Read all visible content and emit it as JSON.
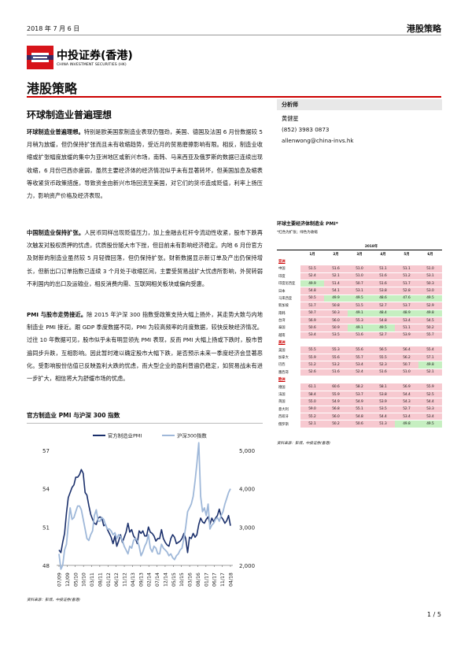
{
  "header": {
    "date": "2018 年 7 月 6 日",
    "report_type": "港股策略"
  },
  "logo": {
    "company_cn": "中投证券(香港)",
    "company_en": "CHINA INVESTMENT SECURITIES (HK)",
    "colors": {
      "red": "#d7141a",
      "navy": "#1c2c6e"
    }
  },
  "section_title": "港股策略",
  "doc_title": "环球制造业普遍理想",
  "paragraphs": [
    {
      "lead": "环球制造业普遍理想。",
      "text": "特别是欧美国家制造业表现仍强劲，美国、德国及法国 6 月份数据较 5 月稍为放缓，但仍保持扩张而且未有收缩趋势，受近月的贸易磨擦影响有限。相反，制造业收缩或扩张幅度放缓的集中为亚洲地区或新兴市场，南韩、马来西亚及俄罗斯的数据已连续出现收缩，6 月份巴西亦疲弱，虽然主要经济体的经济情况似乎未有显著转坏，但美国加息及缩表等收紧货币政策措施，导致资金由新兴市场回流至美国，对它们的货币造成贬值，利率上扬压力，影响资产价格及经济表现。"
    },
    {
      "lead": "中国制造业保持扩张。",
      "text": "人民币同样出现贬值压力，加上金融去杠杆令流动性收紧，股市下跌再次触发对股权质押的忧虑，优质股份随大市下挫，但目前未有影响经济稳定。内地 6 月份官方及财新的制造业虽然较 5 月轻微回落，但仍保持扩张。财新数据显示新订单及产出仍保持增长，但新出口订单指数已连续 3 个月处于收缩区间，主要受贸易战扩大忧虑所影响，外贸转弱不利国内的出口及运输业，相反消费内需、互联网相关板块或偏向受惠。"
    },
    {
      "lead": "PMI 与股市走势接近。",
      "text": "除 2015 年沪深 300 指数受政策支持大幅上扬外，其走势大致与内地制造业 PMI 接近。跟 GDP 季度数据不同，PMI 为较高频率的月度数据，较快反映经济情况。过往 10 年数据可见，股市似乎未有明显领先 PMI 表现，反而 PMI 大幅上扬或下跌时，股市普遍同步升跌，互相影响。因此暂时难以确定股市大幅下跌，是否预示未来一季度经济会显著恶化。受影响股份估值已反映盈利大跌的忧虑，而大型企业的盈利普遍仍稳定，如贸易战未有进一步扩大，相信将大为舒缓市场的忧虑。"
    }
  ],
  "analyst": {
    "heading": "分析师",
    "name": "黄健星",
    "phone": "(852) 3983 0873",
    "email": "allenwong@china-invs.hk"
  },
  "pmi_table": {
    "title": "环球主要经济体制造业 PMI*",
    "subtitle": "*红色为扩张；绿色为收缩",
    "year": "2018年",
    "months": [
      "1月",
      "2月",
      "3月",
      "4月",
      "5月",
      "6月"
    ],
    "groups": [
      {
        "label": "亚洲",
        "rows": [
          {
            "name": "中国",
            "values": [
              "51.5",
              "51.6",
              "51.0",
              "51.1",
              "51.1",
              "51.0"
            ]
          },
          {
            "name": "印度",
            "values": [
              "52.4",
              "52.1",
              "51.0",
              "51.6",
              "51.2",
              "53.1"
            ]
          },
          {
            "name": "印度尼西亚",
            "values": [
              "49.9",
              "51.4",
              "50.7",
              "51.6",
              "51.7",
              "50.3"
            ]
          },
          {
            "name": "日本",
            "values": [
              "54.8",
              "54.1",
              "53.1",
              "53.8",
              "52.8",
              "53.0"
            ]
          },
          {
            "name": "马来西亚",
            "values": [
              "50.5",
              "49.9",
              "49.5",
              "48.6",
              "47.6",
              "49.5"
            ]
          },
          {
            "name": "新加坡",
            "values": [
              "51.7",
              "50.8",
              "51.5",
              "52.7",
              "53.7",
              "52.9"
            ]
          },
          {
            "name": "南韩",
            "values": [
              "50.7",
              "50.3",
              "49.1",
              "48.4",
              "48.9",
              "49.8"
            ]
          },
          {
            "name": "台湾",
            "values": [
              "56.9",
              "56.0",
              "55.3",
              "54.8",
              "53.4",
              "54.5"
            ]
          },
          {
            "name": "泰国",
            "values": [
              "50.6",
              "50.9",
              "49.1",
              "49.5",
              "51.1",
              "50.2"
            ]
          },
          {
            "name": "越南",
            "values": [
              "53.4",
              "53.5",
              "51.6",
              "52.7",
              "53.9",
              "55.7"
            ]
          }
        ]
      },
      {
        "label": "美洲",
        "rows": [
          {
            "name": "美国",
            "values": [
              "55.5",
              "55.3",
              "55.6",
              "56.5",
              "56.4",
              "55.4"
            ]
          },
          {
            "name": "加拿大",
            "values": [
              "55.9",
              "55.6",
              "55.7",
              "55.5",
              "56.2",
              "57.1"
            ]
          },
          {
            "name": "巴西",
            "values": [
              "51.2",
              "53.2",
              "53.4",
              "52.3",
              "50.7",
              "49.8"
            ]
          },
          {
            "name": "墨西哥",
            "values": [
              "52.6",
              "51.6",
              "52.4",
              "51.6",
              "51.0",
              "52.1"
            ]
          }
        ]
      },
      {
        "label": "欧洲",
        "rows": [
          {
            "name": "德国",
            "values": [
              "61.1",
              "60.6",
              "58.2",
              "58.1",
              "56.9",
              "55.9"
            ]
          },
          {
            "name": "法国",
            "values": [
              "58.4",
              "55.9",
              "53.7",
              "53.8",
              "54.4",
              "52.5"
            ]
          },
          {
            "name": "英国",
            "values": [
              "55.0",
              "54.9",
              "54.9",
              "53.9",
              "54.3",
              "54.4"
            ]
          },
          {
            "name": "意大利",
            "values": [
              "59.0",
              "56.8",
              "55.1",
              "53.5",
              "52.7",
              "53.3"
            ]
          },
          {
            "name": "西班牙",
            "values": [
              "55.2",
              "56.0",
              "54.8",
              "54.4",
              "53.4",
              "53.4"
            ]
          },
          {
            "name": "俄罗斯",
            "values": [
              "52.1",
              "50.2",
              "50.6",
              "51.3",
              "49.8",
              "49.5"
            ]
          }
        ]
      }
    ],
    "source": "资料来源：彭博，中投证券(香港)"
  },
  "chart_data": {
    "type": "line",
    "title": "官方制造业 PMI 与沪深 300 指数",
    "series": [
      {
        "name": "官方制造业PMI",
        "axis": "left",
        "color": "#1a2f6b",
        "values": [
          49.2,
          49.0,
          49.8,
          50.5,
          52.1,
          53.3,
          53.7,
          54.1,
          54.3,
          54.9,
          54.9,
          55.1,
          55.5,
          55.2,
          53.7,
          53.5,
          52.7,
          52.0,
          51.6,
          51.3,
          51.2,
          51.7,
          51.8,
          51.7,
          51.1,
          51.2,
          50.8,
          50.5,
          50.2,
          49.7,
          50.3,
          49.5,
          49.9,
          50.4,
          49.8,
          50.2,
          50.6,
          51.3,
          50.6,
          50.8,
          50.3,
          50.1,
          49.7,
          50.7,
          50.5,
          50.7,
          50.3,
          50.3,
          51.0,
          50.6,
          50.5,
          50.3,
          49.9,
          50.1,
          50.1,
          50.8,
          50.1,
          49.8,
          49.6,
          49.5,
          50.1,
          50.4,
          50.2,
          49.7,
          49.8,
          49.9,
          50.1,
          50.5,
          50.1,
          49.0,
          50.2,
          50.1,
          50.5,
          50.2,
          50.4,
          51.2,
          51.7,
          51.4,
          51.3,
          51.6,
          51.8,
          51.2,
          51.7,
          51.4,
          51.7,
          51.9,
          52.4,
          51.8,
          51.6,
          51.3,
          51.5,
          51.9,
          51.1
        ]
      },
      {
        "name": "沪深300指数",
        "axis": "right",
        "color": "#9fb8d9",
        "values": [
          2300,
          1900,
          2000,
          2400,
          2550,
          3050,
          3500,
          3200,
          3250,
          3400,
          3550,
          3550,
          3450,
          3200,
          2950,
          2700,
          2650,
          2800,
          2900,
          3300,
          3450,
          3150,
          3150,
          3250,
          3200,
          3050,
          2950,
          2950,
          2900,
          2800,
          2850,
          2700,
          2800,
          2750,
          2650,
          2500,
          2400,
          2300,
          2500,
          2450,
          2650,
          2700,
          2650,
          2500,
          2250,
          2350,
          2500,
          2600,
          2800,
          2450,
          2350,
          2500,
          2450,
          2300,
          2300,
          2550,
          2450,
          2400,
          2350,
          2250,
          2300,
          2200,
          2150,
          2250,
          2300,
          2400,
          2450,
          2700,
          3000,
          3400,
          3500,
          3600,
          3800,
          4200,
          4650,
          5200,
          3800,
          3400,
          3500,
          3300,
          3600,
          2950,
          3050,
          3100,
          3200,
          3250,
          3150,
          3300,
          3400,
          3600,
          3750,
          3900,
          4000
        ]
      }
    ],
    "x_tick_labels": [
      "07/09",
      "12/09",
      "05/10",
      "10/10",
      "03/11",
      "08/11",
      "01/12",
      "06/12",
      "11/12",
      "04/13",
      "09/13",
      "02/14",
      "07/14",
      "12/14",
      "05/15",
      "10/15",
      "03/16",
      "08/16",
      "01/17",
      "06/17",
      "11/17",
      "04/18"
    ],
    "y_left": {
      "ticks": [
        "48",
        "51",
        "54",
        "57"
      ],
      "min": 48,
      "max": 57
    },
    "y_right": {
      "ticks": [
        "2,000",
        "3,000",
        "4,000",
        "5,000"
      ],
      "min": 2000,
      "max": 5000
    },
    "legend": "top-center",
    "source": "资料来源：彭博，中投证券(香港)"
  },
  "page_number": "1 / 5"
}
